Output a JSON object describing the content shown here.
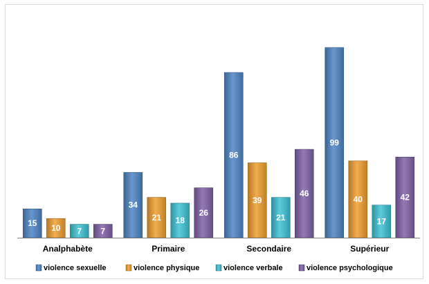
{
  "chart_data": {
    "type": "bar",
    "categories": [
      "Analphabète",
      "Primaire",
      "Secondaire",
      "Supérieur"
    ],
    "series": [
      {
        "name": "violence sexuelle",
        "values": [
          15,
          34,
          86,
          99
        ],
        "color": "#4f86c6"
      },
      {
        "name": "violence physique",
        "values": [
          10,
          21,
          39,
          40
        ],
        "color": "#f0a030"
      },
      {
        "name": "violence verbale",
        "values": [
          7,
          18,
          21,
          17
        ],
        "color": "#3fc3d5"
      },
      {
        "name": "violence psychologique",
        "values": [
          7,
          26,
          46,
          42
        ],
        "color": "#8063a8"
      }
    ],
    "title": "",
    "xlabel": "",
    "ylabel": "",
    "ylim": [
      0,
      100
    ],
    "grid": false,
    "legend": "bottom",
    "data_labels": true
  }
}
